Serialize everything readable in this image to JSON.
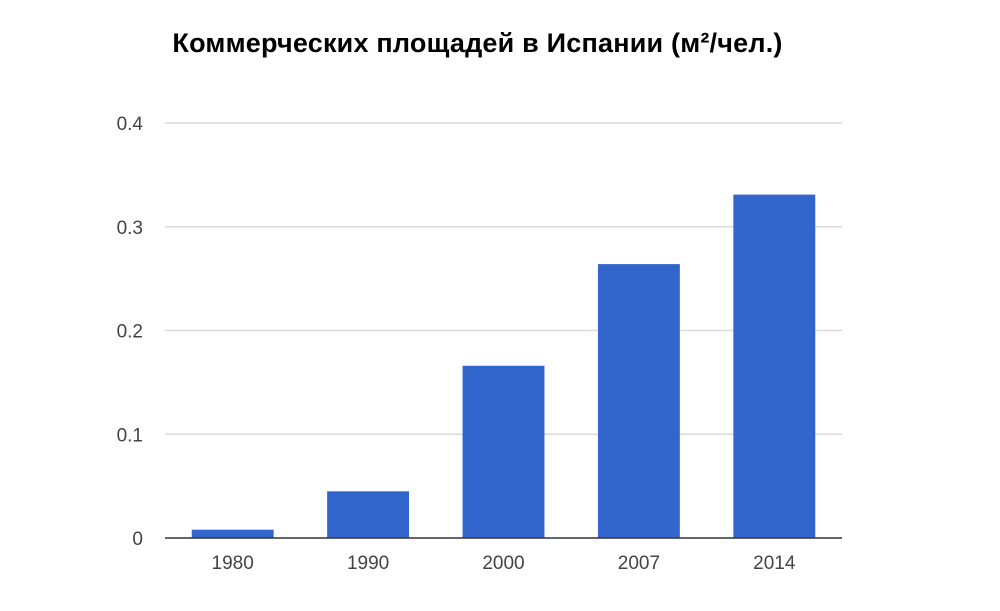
{
  "chart_data": {
    "type": "bar",
    "title": "Коммерческих площадей в Испании (м²/чел.)",
    "xlabel": "",
    "ylabel": "",
    "categories": [
      "1980",
      "1990",
      "2000",
      "2007",
      "2014"
    ],
    "values": [
      0.008,
      0.045,
      0.166,
      0.264,
      0.331
    ],
    "ylim": [
      0,
      0.4
    ],
    "yticks": [
      "0",
      "0.1",
      "0.2",
      "0.3",
      "0.4"
    ],
    "ytick_values": [
      0,
      0.1,
      0.2,
      0.3,
      0.4
    ],
    "grid": true,
    "legend": "none",
    "bar_color": "#3366cc",
    "grid_color": "#d9d9d9",
    "axis_color": "#333333"
  }
}
